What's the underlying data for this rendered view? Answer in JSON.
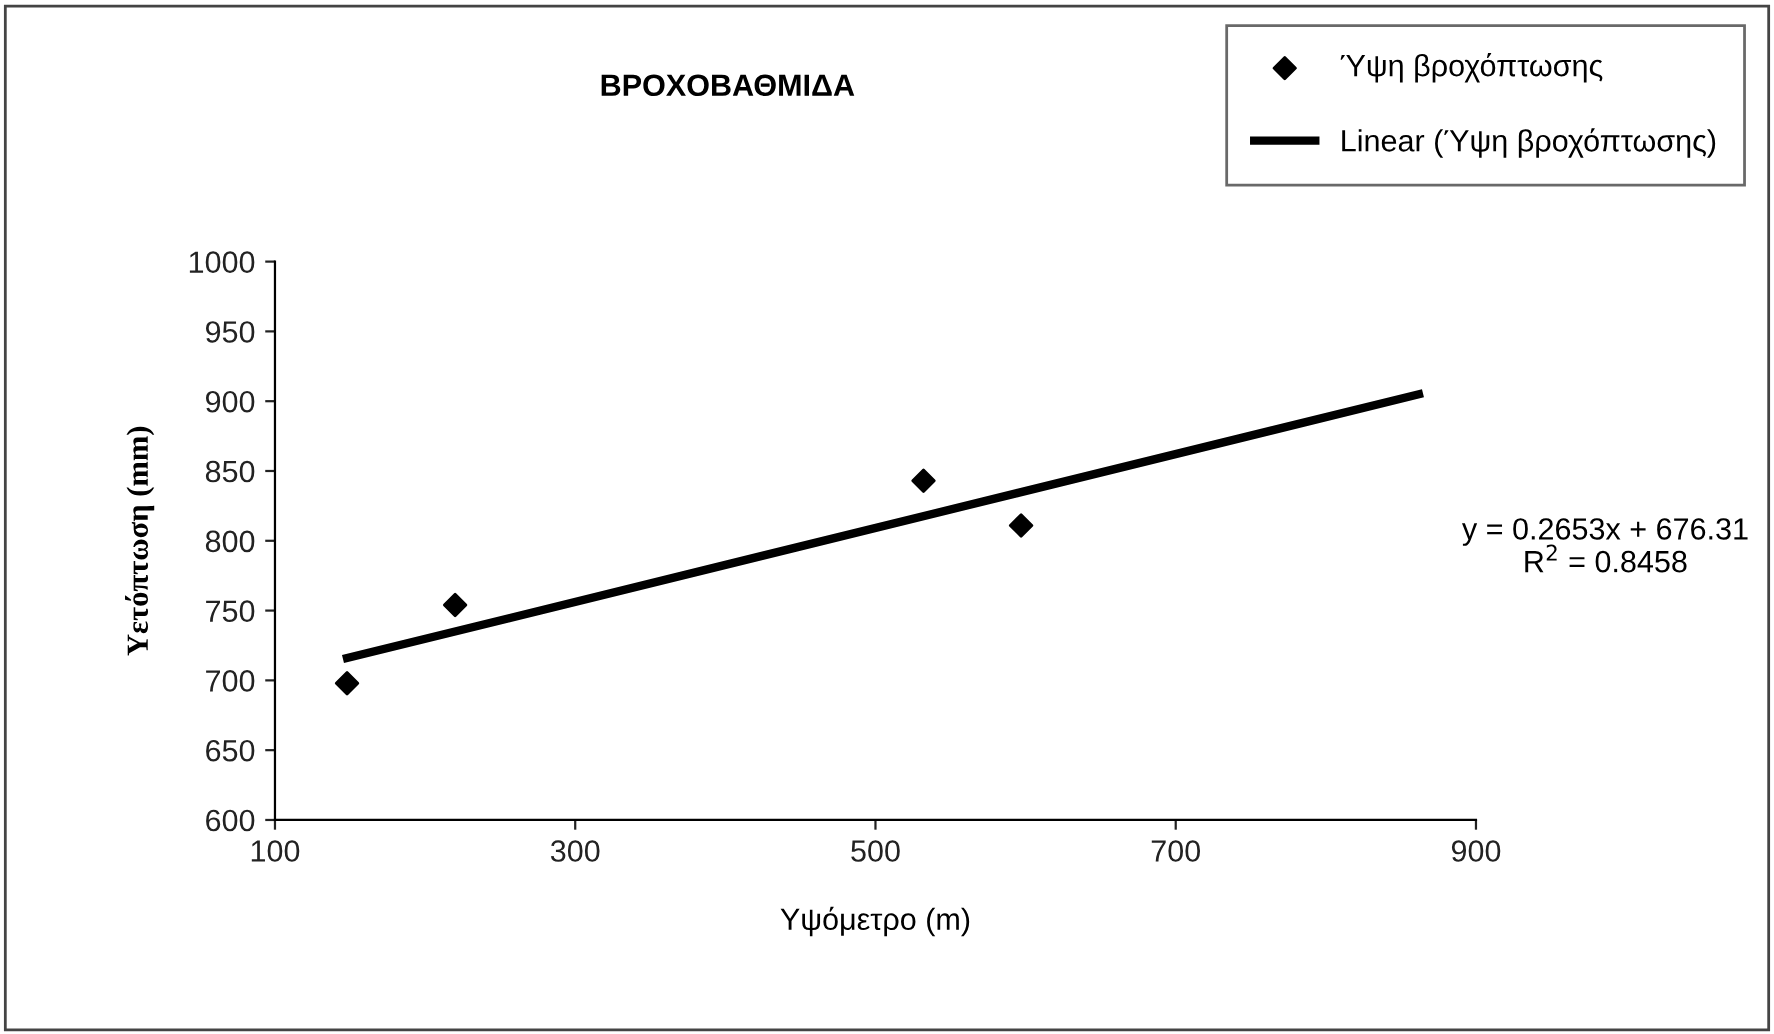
{
  "chart_data": {
    "type": "scatter",
    "title": "ΒΡΟΧΟΒΑΘΜΙΔΑ",
    "xlabel": "Υψόμετρο (m)",
    "ylabel": "Υετόπτωση (mm)",
    "xlim": [
      100,
      900
    ],
    "xticks": [
      100,
      300,
      500,
      700,
      900
    ],
    "ylim": [
      600,
      1000
    ],
    "yticks": [
      600,
      650,
      700,
      750,
      800,
      850,
      900,
      950,
      1000
    ],
    "x": [
      148,
      220,
      532,
      597
    ],
    "series": [
      {
        "name": "Ύψη βροχόπτωσης",
        "color": "#000000",
        "values": [
          698,
          754,
          843,
          811
        ],
        "marker": "diamond"
      },
      {
        "name": "Linear (Ύψη βροχόπτωσης)",
        "type": "line",
        "color": "#000000",
        "x": [
          148,
          862
        ],
        "values": [
          716,
          905
        ],
        "line_style": "solid"
      }
    ],
    "annotations": [
      "y = 0.2653x + 676.31\nR$^{2}$ = 0.8458"
    ],
    "grid": false,
    "legend": "top right"
  }
}
